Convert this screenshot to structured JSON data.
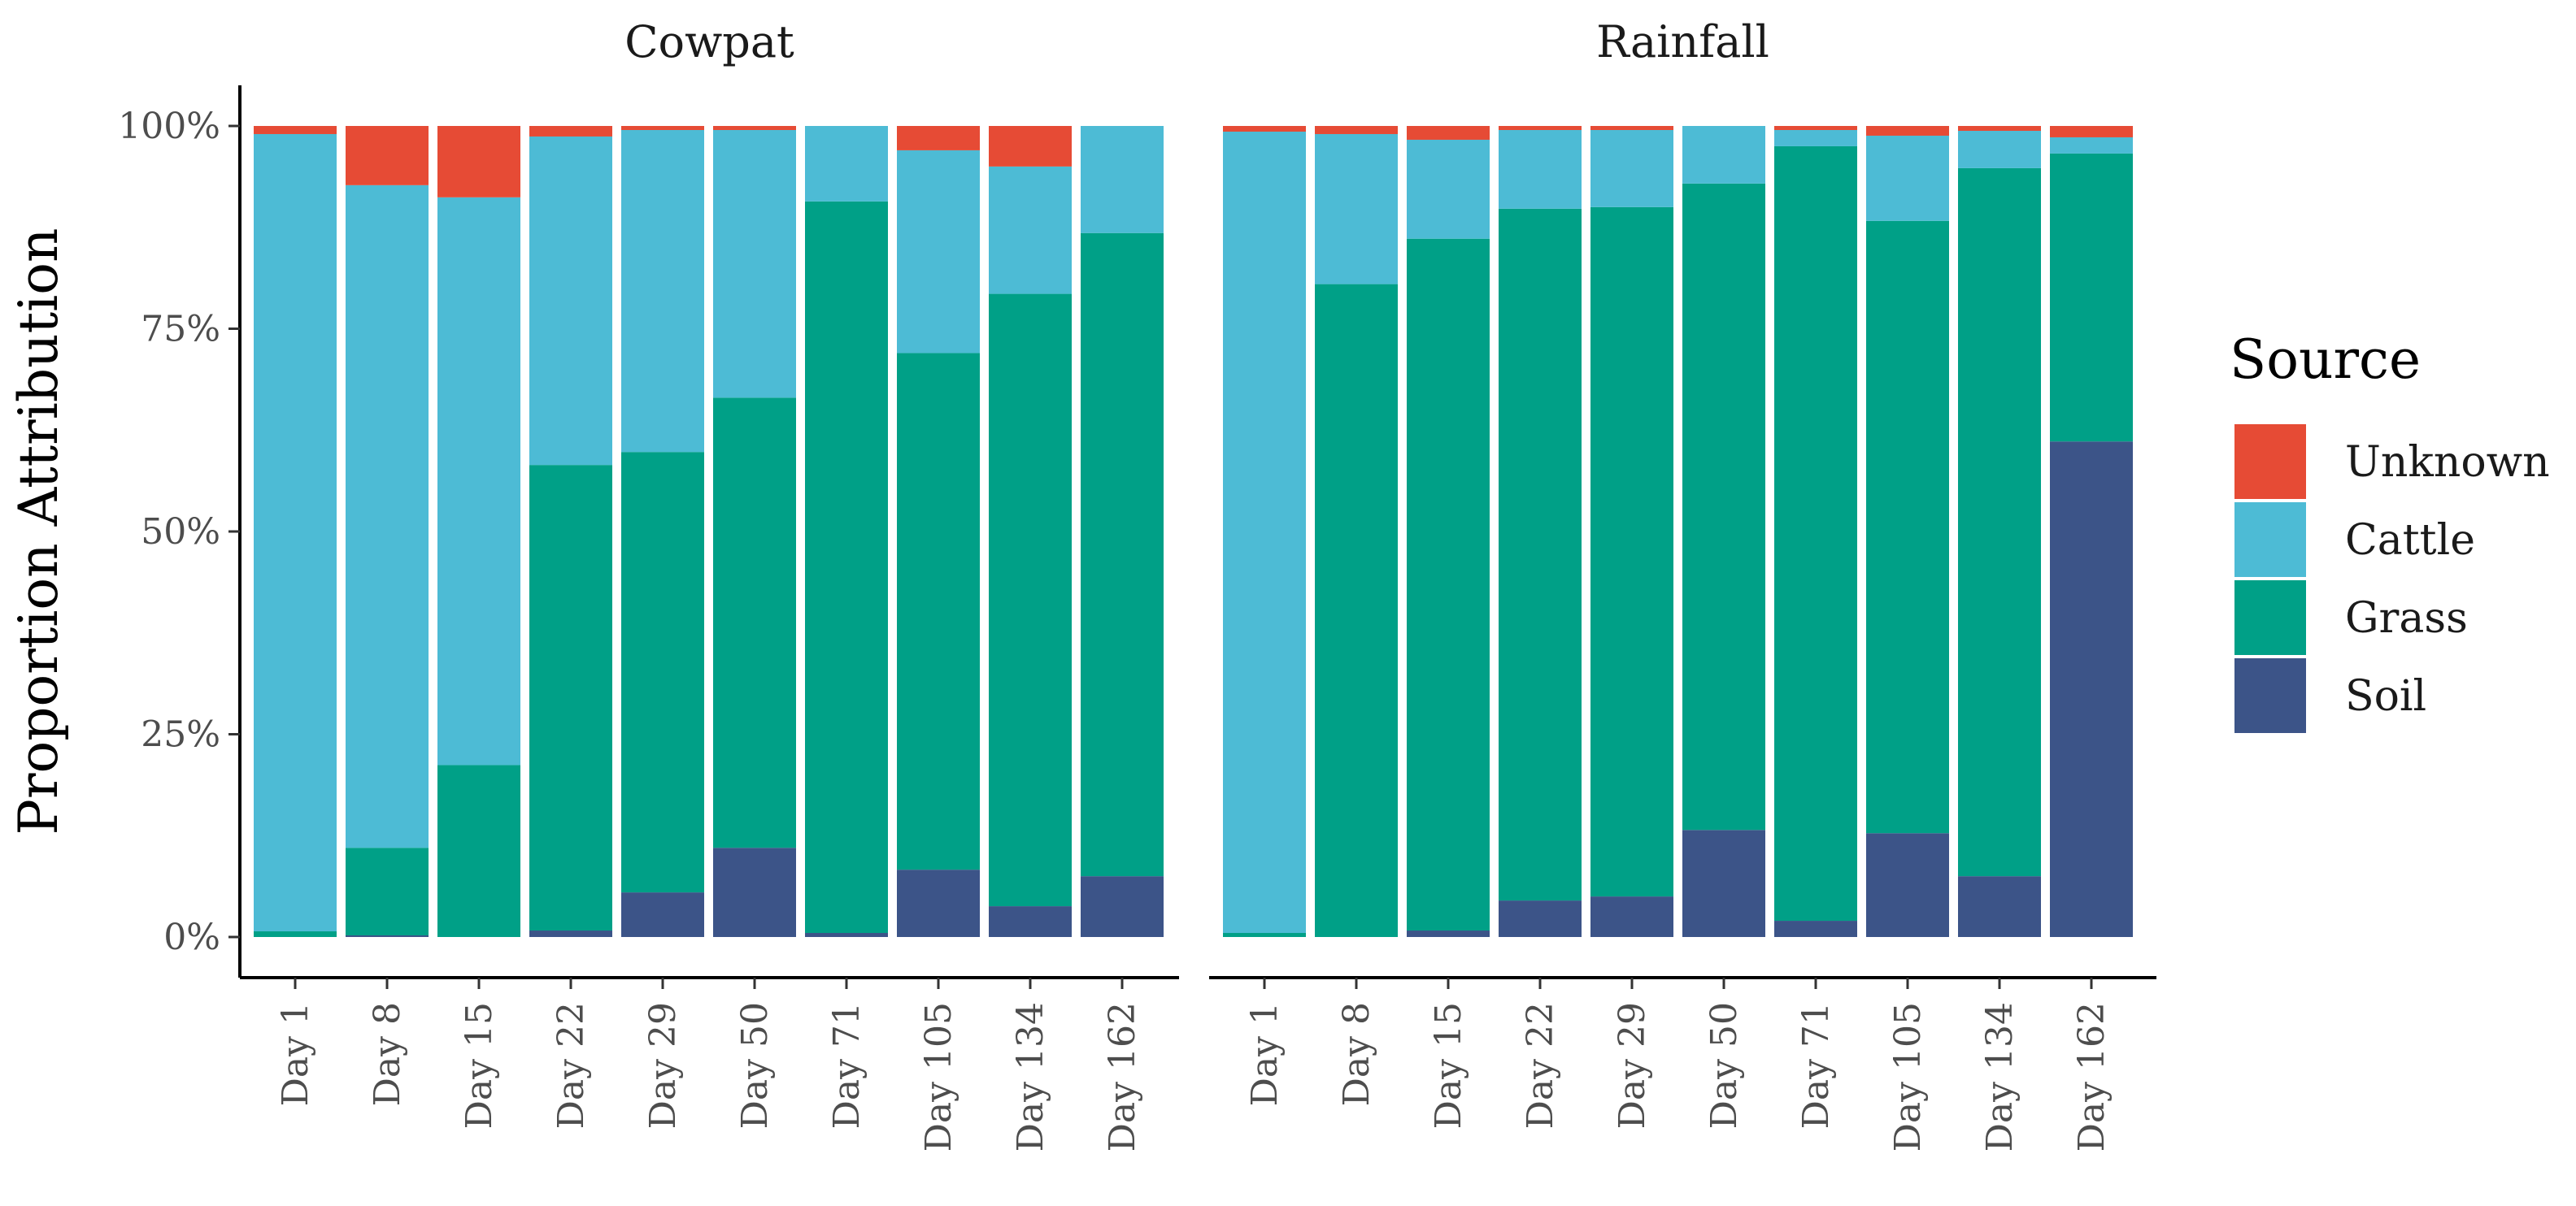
{
  "chart_data": {
    "type": "bar",
    "stacked": true,
    "ylabel": "Proportion Attribution",
    "xlabel": "",
    "ylim": [
      0,
      1
    ],
    "y_ticks": [
      {
        "value": 0,
        "label": "0%"
      },
      {
        "value": 0.25,
        "label": "25%"
      },
      {
        "value": 0.5,
        "label": "50%"
      },
      {
        "value": 0.75,
        "label": "75%"
      },
      {
        "value": 1,
        "label": "100%"
      }
    ],
    "categories": [
      "Day 1",
      "Day 8",
      "Day 15",
      "Day 22",
      "Day 29",
      "Day 50",
      "Day 71",
      "Day 105",
      "Day 134",
      "Day 162"
    ],
    "legend": {
      "title": "Source",
      "position": "right",
      "entries": [
        {
          "name": "Unknown",
          "color": "#E64B35"
        },
        {
          "name": "Cattle",
          "color": "#4DBBD5"
        },
        {
          "name": "Grass",
          "color": "#00A087"
        },
        {
          "name": "Soil",
          "color": "#3C5488"
        }
      ]
    },
    "grid": false,
    "facets": [
      {
        "title": "Cowpat",
        "series": [
          {
            "name": "Soil",
            "values": [
              0.0,
              0.002,
              0.0,
              0.008,
              0.055,
              0.11,
              0.005,
              0.083,
              0.038,
              0.075
            ]
          },
          {
            "name": "Grass",
            "values": [
              0.007,
              0.108,
              0.212,
              0.574,
              0.543,
              0.555,
              0.902,
              0.637,
              0.755,
              0.793
            ]
          },
          {
            "name": "Cattle",
            "values": [
              0.983,
              0.817,
              0.7,
              0.405,
              0.397,
              0.33,
              0.093,
              0.25,
              0.157,
              0.132
            ]
          },
          {
            "name": "Unknown",
            "values": [
              0.01,
              0.073,
              0.088,
              0.013,
              0.005,
              0.005,
              0.0,
              0.03,
              0.05,
              0.0
            ]
          }
        ]
      },
      {
        "title": "Rainfall",
        "series": [
          {
            "name": "Soil",
            "values": [
              0.0,
              0.0,
              0.008,
              0.045,
              0.05,
              0.132,
              0.02,
              0.128,
              0.075,
              0.611
            ]
          },
          {
            "name": "Grass",
            "values": [
              0.005,
              0.805,
              0.853,
              0.853,
              0.85,
              0.797,
              0.955,
              0.755,
              0.873,
              0.355
            ]
          },
          {
            "name": "Cattle",
            "values": [
              0.988,
              0.185,
              0.122,
              0.097,
              0.095,
              0.071,
              0.02,
              0.105,
              0.046,
              0.02
            ]
          },
          {
            "name": "Unknown",
            "values": [
              0.007,
              0.01,
              0.017,
              0.005,
              0.005,
              0.0,
              0.005,
              0.012,
              0.006,
              0.014
            ]
          }
        ]
      }
    ]
  }
}
